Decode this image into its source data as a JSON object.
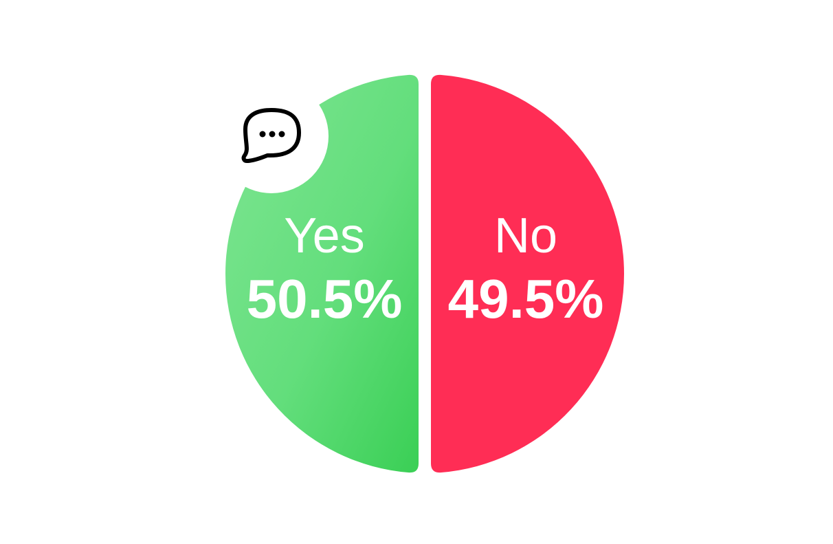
{
  "chart_data": {
    "type": "pie",
    "title": "",
    "slices": [
      {
        "label": "Yes",
        "value": 50.5,
        "display": "50.5%",
        "color": "#4CD964",
        "color_light": "#6FE285"
      },
      {
        "label": "No",
        "value": 49.5,
        "display": "49.5%",
        "color": "#FF2D55"
      }
    ],
    "legend": "none",
    "labels_on_slices": true
  },
  "icon": {
    "name": "chat-bubble-icon",
    "color": "#000000"
  }
}
